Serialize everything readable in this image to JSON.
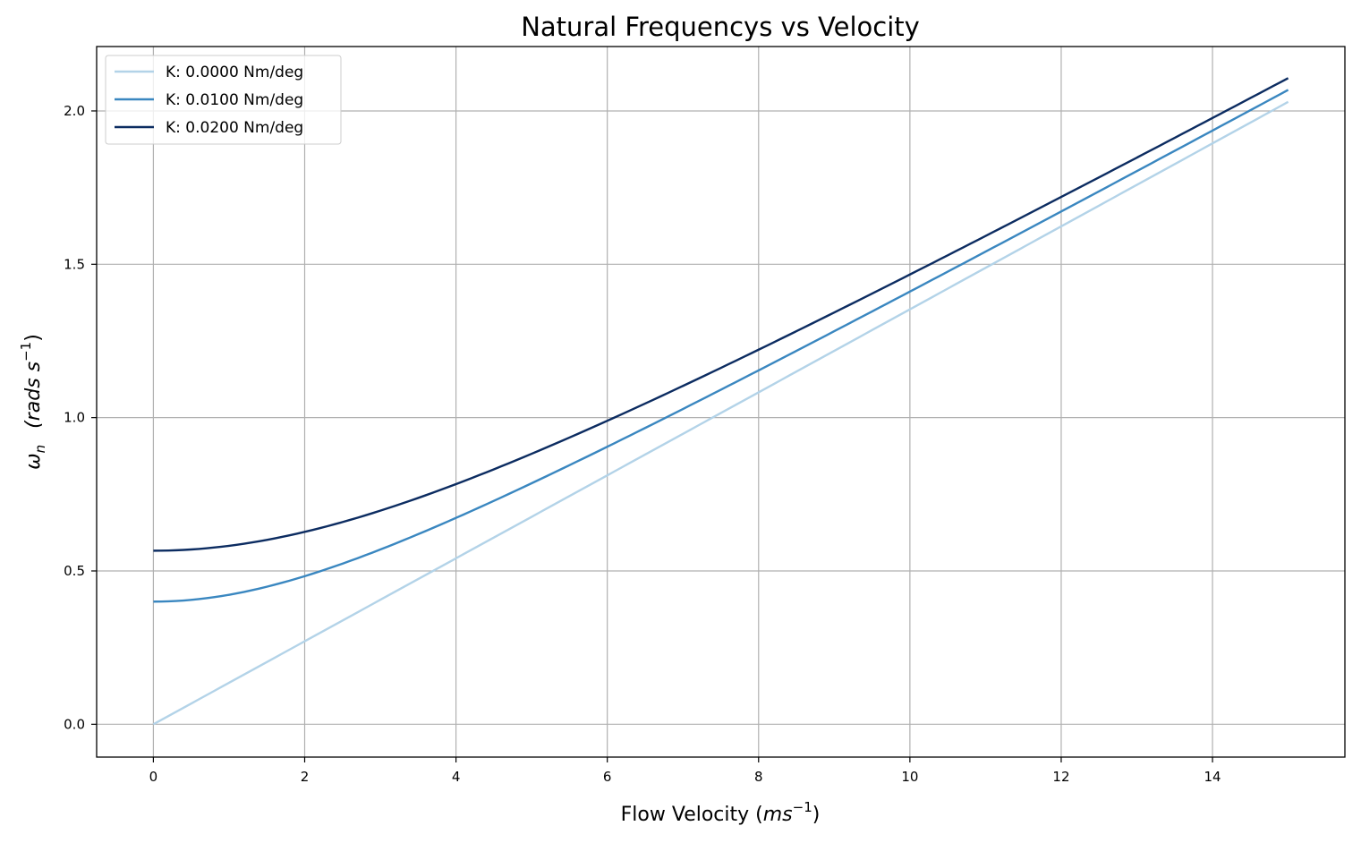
{
  "chart_data": {
    "type": "line",
    "title": "Natural Frequencys vs Velocity",
    "xlabel": {
      "main": "Flow Velocity (",
      "math": "ms",
      "sup": "−1",
      "close": ")"
    },
    "ylabel": {
      "omega": "ω",
      "sub": "n",
      "unit": "(rads s",
      "sup": "−1",
      "close": ")"
    },
    "xlim": [
      -0.75,
      15.75
    ],
    "ylim": [
      -0.107,
      2.21
    ],
    "x_ticks": [
      0,
      2,
      4,
      6,
      8,
      10,
      12,
      14
    ],
    "x_tick_labels": [
      "0",
      "2",
      "4",
      "6",
      "8",
      "10",
      "12",
      "14"
    ],
    "y_ticks": [
      0.0,
      0.5,
      1.0,
      1.5,
      2.0
    ],
    "y_tick_labels": [
      "0.0",
      "0.5",
      "1.0",
      "1.5",
      "2.0"
    ],
    "grid": true,
    "legend_position": "upper-left",
    "series": [
      {
        "name": "K: 0.0000 Nm/deg",
        "color": "#b3d3e8",
        "omega0": 0.0,
        "slope": 0.1353,
        "x": [
          0,
          1,
          2,
          3,
          4,
          5,
          6,
          7,
          8,
          9,
          10,
          11,
          12,
          13,
          14,
          15
        ],
        "values": [
          0.0,
          0.135,
          0.271,
          0.406,
          0.541,
          0.677,
          0.812,
          0.947,
          1.082,
          1.218,
          1.353,
          1.488,
          1.624,
          1.759,
          1.894,
          2.03
        ]
      },
      {
        "name": "K: 0.0100 Nm/deg",
        "color": "#3a87c0",
        "omega0": 0.4,
        "slope": 0.1353,
        "x": [
          0,
          1,
          2,
          3,
          4,
          5,
          6,
          7,
          8,
          9,
          10,
          11,
          12,
          13,
          14,
          15
        ],
        "values": [
          0.4,
          0.422,
          0.482,
          0.566,
          0.665,
          0.776,
          0.893,
          1.016,
          1.144,
          1.274,
          1.406,
          1.541,
          1.676,
          1.813,
          1.95,
          2.069
        ]
      },
      {
        "name": "K: 0.0200 Nm/deg",
        "color": "#0c2c61",
        "omega0": 0.566,
        "slope": 0.1353,
        "x": [
          0,
          1,
          2,
          3,
          4,
          5,
          6,
          7,
          8,
          9,
          10,
          11,
          12,
          13,
          14,
          15
        ],
        "values": [
          0.566,
          0.582,
          0.627,
          0.695,
          0.782,
          0.88,
          0.99,
          1.107,
          1.228,
          1.355,
          1.484,
          1.615,
          1.748,
          1.882,
          2.016,
          2.108
        ]
      }
    ]
  }
}
